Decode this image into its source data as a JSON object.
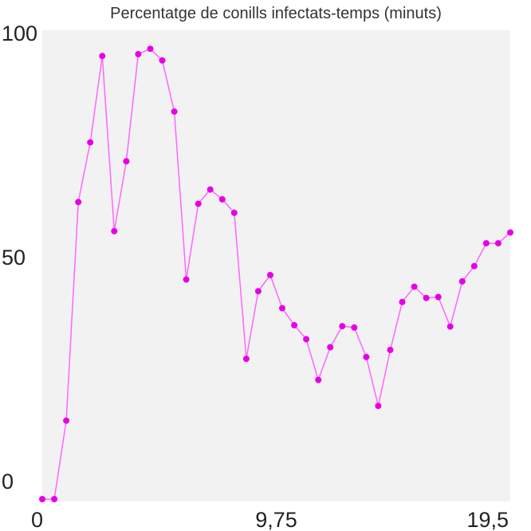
{
  "chart_data": {
    "type": "line",
    "title": "Percentatge de conills infectats-temps (minuts)",
    "xlabel": "",
    "ylabel": "",
    "xlim": [
      0,
      19.5
    ],
    "ylim": [
      0,
      100
    ],
    "x_ticks": [
      {
        "value": 0,
        "label": "0"
      },
      {
        "value": 9.75,
        "label": "9,75"
      },
      {
        "value": 19.5,
        "label": "19,5"
      }
    ],
    "y_ticks": [
      {
        "value": 0,
        "label": "0"
      },
      {
        "value": 50,
        "label": "50"
      },
      {
        "value": 100,
        "label": "100"
      }
    ],
    "grid": false,
    "colors": {
      "line": "#ff66ff",
      "marker": "#e600e6",
      "plot_background": "#f2f2f2"
    },
    "series": [
      {
        "x": [
          0,
          0.5,
          1,
          1.5,
          2,
          2.5,
          3,
          3.5,
          4,
          4.5,
          5,
          5.5,
          6,
          6.5,
          7,
          7.5,
          8,
          8.5,
          9,
          9.5,
          10,
          10.5,
          11,
          11.5,
          12,
          12.5,
          13,
          13.5,
          14,
          14.5,
          15,
          15.5,
          16,
          16.5,
          17,
          17.5,
          18,
          18.5,
          19,
          19.5
        ],
        "values": [
          0,
          0,
          17.5,
          66.3,
          79.6,
          98.9,
          59.8,
          75.4,
          99.3,
          100.5,
          97.9,
          86.5,
          49,
          65.9,
          69.1,
          66.9,
          63.9,
          31.3,
          46.4,
          50,
          42.6,
          38.8,
          35.7,
          26.6,
          33.9,
          38.6,
          38.3,
          31.7,
          20.8,
          33.3,
          44,
          47.4,
          44.9,
          45.1,
          38.5,
          48.6,
          52,
          57.1,
          57.1,
          59.5
        ]
      }
    ]
  }
}
